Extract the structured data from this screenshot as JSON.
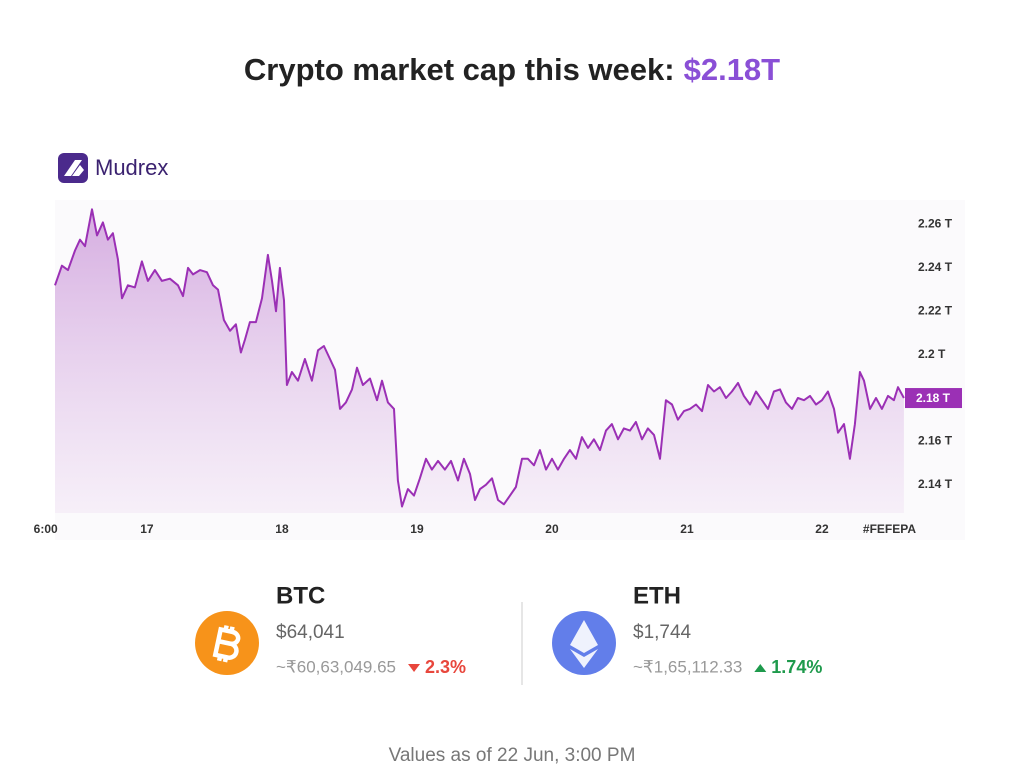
{
  "header": {
    "title": "Crypto market cap this week:",
    "highlight": "$2.18T"
  },
  "brand": "Mudrex",
  "chart_data": {
    "type": "area",
    "color": "#9b30b5",
    "x": [
      16.319,
      16.37,
      16.415,
      16.467,
      16.504,
      16.541,
      16.593,
      16.63,
      16.674,
      16.711,
      16.748,
      16.785,
      16.815,
      16.859,
      16.911,
      16.963,
      17.007,
      17.059,
      17.111,
      17.17,
      17.23,
      17.267,
      17.304,
      17.341,
      17.393,
      17.444,
      17.489,
      17.526,
      17.57,
      17.615,
      17.659,
      17.696,
      17.726,
      17.763,
      17.807,
      17.852,
      17.896,
      17.926,
      17.956,
      17.985,
      18.015,
      18.037,
      18.074,
      18.119,
      18.17,
      18.222,
      18.267,
      18.311,
      18.356,
      18.393,
      18.43,
      18.474,
      18.519,
      18.556,
      18.6,
      18.652,
      18.704,
      18.741,
      18.785,
      18.83,
      18.859,
      18.889,
      18.933,
      18.978,
      19.022,
      19.067,
      19.111,
      19.156,
      19.207,
      19.252,
      19.304,
      19.348,
      19.393,
      19.43,
      19.467,
      19.511,
      19.556,
      19.6,
      19.644,
      19.689,
      19.733,
      19.778,
      19.822,
      19.867,
      19.911,
      19.956,
      20.0,
      20.044,
      20.089,
      20.133,
      20.178,
      20.222,
      20.267,
      20.311,
      20.356,
      20.4,
      20.444,
      20.489,
      20.533,
      20.578,
      20.622,
      20.667,
      20.711,
      20.756,
      20.8,
      20.844,
      20.889,
      20.933,
      20.978,
      21.022,
      21.067,
      21.111,
      21.156,
      21.2,
      21.244,
      21.289,
      21.333,
      21.378,
      21.422,
      21.467,
      21.511,
      21.556,
      21.6,
      21.644,
      21.689,
      21.733,
      21.778,
      21.822,
      21.867,
      21.911,
      21.956,
      22.0,
      22.044,
      22.089,
      22.119,
      22.163,
      22.207,
      22.244,
      22.281,
      22.311,
      22.356,
      22.4,
      22.444,
      22.489,
      22.533,
      22.563,
      22.607
    ],
    "values": [
      2.232,
      2.241,
      2.239,
      2.248,
      2.253,
      2.25,
      2.267,
      2.255,
      2.261,
      2.253,
      2.256,
      2.244,
      2.226,
      2.232,
      2.231,
      2.243,
      2.234,
      2.239,
      2.234,
      2.235,
      2.232,
      2.227,
      2.24,
      2.237,
      2.239,
      2.238,
      2.232,
      2.23,
      2.216,
      2.211,
      2.214,
      2.201,
      2.207,
      2.215,
      2.215,
      2.226,
      2.246,
      2.234,
      2.22,
      2.24,
      2.225,
      2.186,
      2.192,
      2.188,
      2.198,
      2.188,
      2.202,
      2.204,
      2.198,
      2.193,
      2.175,
      2.178,
      2.184,
      2.194,
      2.186,
      2.189,
      2.179,
      2.188,
      2.178,
      2.175,
      2.142,
      2.13,
      2.138,
      2.135,
      2.143,
      2.152,
      2.147,
      2.151,
      2.147,
      2.151,
      2.142,
      2.152,
      2.145,
      2.133,
      2.138,
      2.14,
      2.143,
      2.133,
      2.131,
      2.135,
      2.139,
      2.152,
      2.152,
      2.149,
      2.156,
      2.147,
      2.152,
      2.147,
      2.152,
      2.156,
      2.152,
      2.162,
      2.157,
      2.161,
      2.156,
      2.165,
      2.168,
      2.161,
      2.166,
      2.165,
      2.169,
      2.161,
      2.166,
      2.163,
      2.152,
      2.179,
      2.177,
      2.17,
      2.174,
      2.175,
      2.177,
      2.174,
      2.186,
      2.183,
      2.185,
      2.18,
      2.183,
      2.187,
      2.181,
      2.177,
      2.183,
      2.179,
      2.175,
      2.183,
      2.184,
      2.178,
      2.175,
      2.18,
      2.179,
      2.181,
      2.177,
      2.179,
      2.183,
      2.175,
      2.164,
      2.168,
      2.152,
      2.168,
      2.192,
      2.188,
      2.175,
      2.18,
      2.175,
      2.181,
      2.179,
      2.185,
      2.18
    ],
    "xlim": [
      16.319,
      22.615
    ],
    "ylim": [
      2.127,
      2.269
    ],
    "xticks": [
      {
        "value": 16.25,
        "label": "6:00"
      },
      17,
      18,
      19,
      20,
      21,
      22,
      {
        "value": 22.5,
        "label": "#FEFEPA"
      }
    ],
    "yticks": [
      {
        "value": 2.14,
        "label": "2.14 T"
      },
      {
        "value": 2.16,
        "label": "2.16 T"
      },
      {
        "value": 2.18,
        "label": "2.18 T"
      },
      {
        "value": 2.2,
        "label": "2.2 T"
      },
      {
        "value": 2.22,
        "label": "2.22 T"
      },
      {
        "value": 2.24,
        "label": "2.24 T"
      },
      {
        "value": 2.26,
        "label": "2.26 T"
      }
    ],
    "current": {
      "value": 2.18,
      "label": "2.18 T"
    }
  },
  "coins": [
    {
      "symbol": "BTC",
      "price": "$64,041",
      "inr": "~₹60,63,049.65",
      "change": "2.3%",
      "direction": "down",
      "change_color": "#e8463c",
      "color": "#f7931a"
    },
    {
      "symbol": "ETH",
      "price": "$1,744",
      "inr": "~₹1,65,112.33",
      "change": "1.74%",
      "direction": "up",
      "change_color": "#1e9a4c",
      "color": "#627eea"
    }
  ],
  "footer": "Values as of 22 Jun, 3:00 PM"
}
